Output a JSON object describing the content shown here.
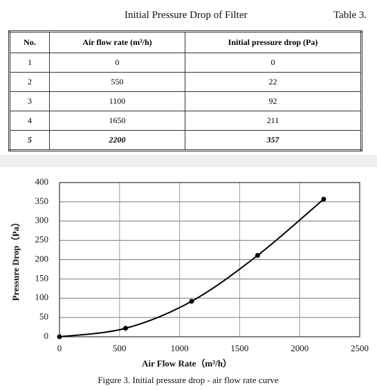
{
  "header": {
    "title": "Initial Pressure Drop of Filter",
    "label": "Table 3."
  },
  "table": {
    "columns": [
      "No.",
      "Air flow rate (m³/h)",
      "Initial pressure drop (Pa)"
    ],
    "rows": [
      [
        "1",
        "0",
        "0"
      ],
      [
        "2",
        "550",
        "22"
      ],
      [
        "3",
        "1100",
        "92"
      ],
      [
        "4",
        "1650",
        "211"
      ],
      [
        "5",
        "2200",
        "357"
      ]
    ]
  },
  "chart_data": {
    "type": "line",
    "xlabel": "Air Flow Rate（m³/h）",
    "ylabel": "Pressure Drop（Pa）",
    "caption": "Figure 3. Initial pressure drop - air flow rate curve",
    "x": [
      0,
      550,
      1100,
      1650,
      2200
    ],
    "values": [
      0,
      22,
      92,
      211,
      357
    ],
    "color": "#000000",
    "xlim": [
      0,
      2500
    ],
    "xticks": [
      0,
      500,
      1000,
      1500,
      2000,
      2500
    ],
    "ylim": [
      0,
      400
    ],
    "yticks": [
      0,
      50,
      100,
      150,
      200,
      250,
      300,
      350,
      400
    ],
    "grid": true
  }
}
